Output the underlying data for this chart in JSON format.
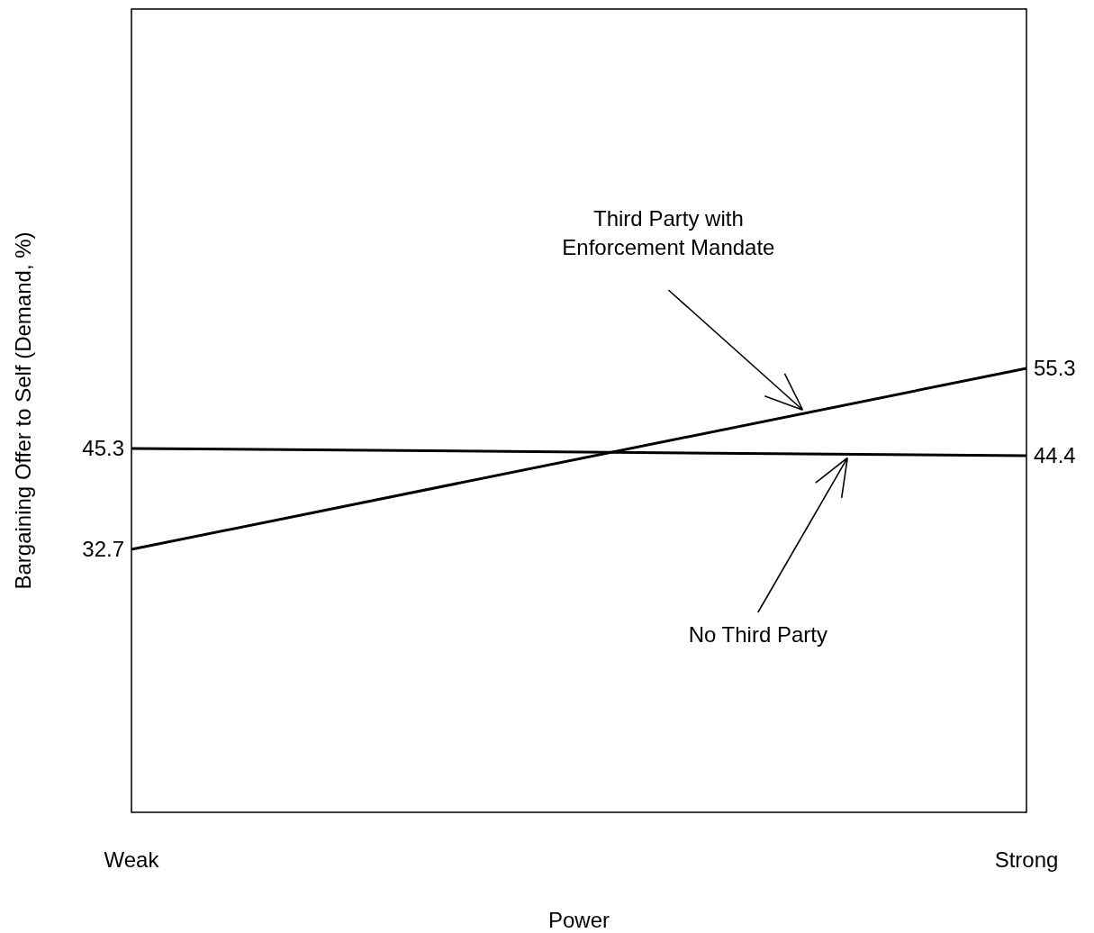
{
  "chart_data": {
    "type": "line",
    "xlabel": "Power",
    "ylabel": "Bargaining Offer to Self (Demand, %)",
    "categories": [
      "Weak",
      "Strong"
    ],
    "data_labels": true,
    "marker": "none",
    "line_style": "solid",
    "annotations": [
      "Third Party with Enforcement Mandate",
      "No Third Party"
    ],
    "series": [
      {
        "color": "#000000",
        "values": [
          32.7,
          55.3
        ]
      },
      {
        "color": "#000000",
        "values": [
          45.3,
          44.4
        ]
      }
    ]
  }
}
